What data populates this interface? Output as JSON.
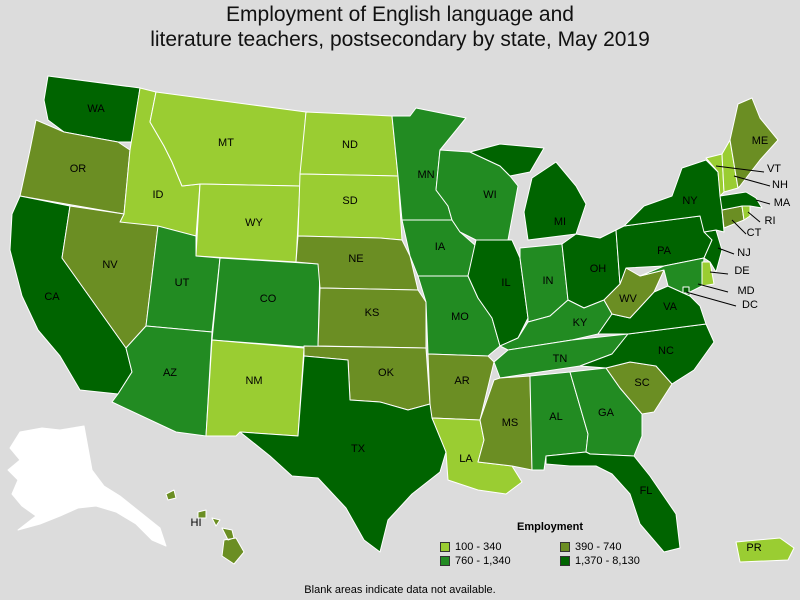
{
  "title_line1": "Employment of English language and",
  "title_line2": "literature teachers, postsecondary by state, May 2019",
  "legend": {
    "title": "Employment",
    "items": [
      {
        "label": "100 - 340",
        "color": "#9acd32"
      },
      {
        "label": "390 - 740",
        "color": "#6b8e23"
      },
      {
        "label": "760 - 1,340",
        "color": "#228b22"
      },
      {
        "label": "1,370 - 8,130",
        "color": "#006400"
      }
    ]
  },
  "footnote": "Blank areas indicate data not available.",
  "colors": {
    "background": "#dcdcdc",
    "no_data": "#ffffff",
    "border": "#ffffff"
  },
  "states": [
    {
      "code": "WA",
      "label": "WA",
      "bin": 3
    },
    {
      "code": "OR",
      "label": "OR",
      "bin": 1
    },
    {
      "code": "CA",
      "label": "CA",
      "bin": 3
    },
    {
      "code": "ID",
      "label": "ID",
      "bin": 0
    },
    {
      "code": "NV",
      "label": "NV",
      "bin": 1
    },
    {
      "code": "MT",
      "label": "MT",
      "bin": 0
    },
    {
      "code": "WY",
      "label": "WY",
      "bin": 0
    },
    {
      "code": "UT",
      "label": "UT",
      "bin": 2
    },
    {
      "code": "AZ",
      "label": "AZ",
      "bin": 2
    },
    {
      "code": "CO",
      "label": "CO",
      "bin": 2
    },
    {
      "code": "NM",
      "label": "NM",
      "bin": 0
    },
    {
      "code": "ND",
      "label": "ND",
      "bin": 0
    },
    {
      "code": "SD",
      "label": "SD",
      "bin": 0
    },
    {
      "code": "NE",
      "label": "NE",
      "bin": 1
    },
    {
      "code": "KS",
      "label": "KS",
      "bin": 1
    },
    {
      "code": "OK",
      "label": "OK",
      "bin": 1
    },
    {
      "code": "TX",
      "label": "TX",
      "bin": 3
    },
    {
      "code": "MN",
      "label": "MN",
      "bin": 2
    },
    {
      "code": "IA",
      "label": "IA",
      "bin": 2
    },
    {
      "code": "MO",
      "label": "MO",
      "bin": 2
    },
    {
      "code": "AR",
      "label": "AR",
      "bin": 1
    },
    {
      "code": "LA",
      "label": "LA",
      "bin": 0
    },
    {
      "code": "WI",
      "label": "WI",
      "bin": 2
    },
    {
      "code": "IL",
      "label": "IL",
      "bin": 3
    },
    {
      "code": "MI",
      "label": "MI",
      "bin": 3
    },
    {
      "code": "IN",
      "label": "IN",
      "bin": 2
    },
    {
      "code": "OH",
      "label": "OH",
      "bin": 3
    },
    {
      "code": "KY",
      "label": "KY",
      "bin": 2
    },
    {
      "code": "TN",
      "label": "TN",
      "bin": 2
    },
    {
      "code": "MS",
      "label": "MS",
      "bin": 1
    },
    {
      "code": "AL",
      "label": "AL",
      "bin": 2
    },
    {
      "code": "GA",
      "label": "GA",
      "bin": 2
    },
    {
      "code": "FL",
      "label": "FL",
      "bin": 3
    },
    {
      "code": "SC",
      "label": "SC",
      "bin": 1
    },
    {
      "code": "NC",
      "label": "NC",
      "bin": 3
    },
    {
      "code": "VA",
      "label": "VA",
      "bin": 3
    },
    {
      "code": "WV",
      "label": "WV",
      "bin": 1
    },
    {
      "code": "PA",
      "label": "PA",
      "bin": 3
    },
    {
      "code": "NY",
      "label": "NY",
      "bin": 3
    },
    {
      "code": "ME",
      "label": "ME",
      "bin": 1
    },
    {
      "code": "VT",
      "label": "VT",
      "bin": 0
    },
    {
      "code": "NH",
      "label": "NH",
      "bin": 0
    },
    {
      "code": "MA",
      "label": "MA",
      "bin": 3
    },
    {
      "code": "RI",
      "label": "RI",
      "bin": 0
    },
    {
      "code": "CT",
      "label": "CT",
      "bin": 1
    },
    {
      "code": "NJ",
      "label": "NJ",
      "bin": 3
    },
    {
      "code": "DE",
      "label": "DE",
      "bin": 0
    },
    {
      "code": "MD",
      "label": "MD",
      "bin": 2
    },
    {
      "code": "DC",
      "label": "DC",
      "bin": 3
    },
    {
      "code": "HI",
      "label": "HI",
      "bin": 1
    },
    {
      "code": "PR",
      "label": "PR",
      "bin": 0
    },
    {
      "code": "AK",
      "label": "",
      "bin": null
    }
  ]
}
